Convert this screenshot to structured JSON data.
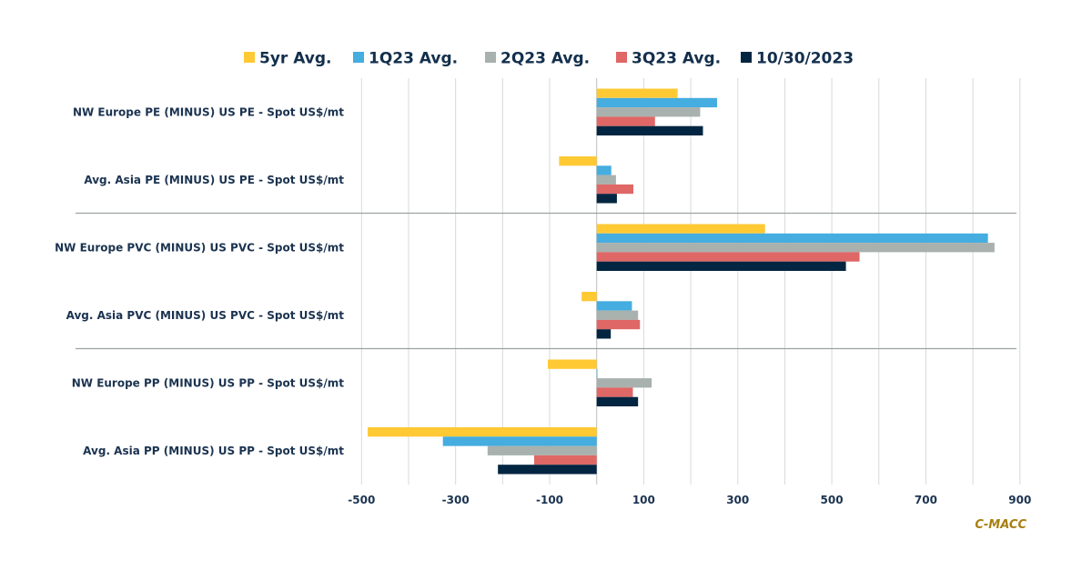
{
  "chart_data": {
    "type": "bar",
    "orientation": "horizontal",
    "title": "",
    "xlabel": "",
    "ylabel": "",
    "xlim": [
      -500,
      900
    ],
    "x_ticks": [
      -500,
      -300,
      -100,
      100,
      300,
      500,
      700,
      900
    ],
    "x_tick_labels": [
      "-500",
      "-300",
      "-100",
      "100",
      "300",
      "500",
      "700",
      "900"
    ],
    "grid": "vertical",
    "legend_position": "top",
    "categories": [
      "NW Europe PE (MINUS) US PE - Spot US$/mt",
      "Avg. Asia PE (MINUS) US PE - Spot US$/mt",
      "NW Europe PVC (MINUS) US PVC - Spot US$/mt",
      "Avg. Asia PVC (MINUS) US PVC - Spot US$/mt",
      "NW Europe PP (MINUS) US PP - Spot US$/mt",
      "Avg. Asia PP (MINUS) US PP - Spot US$/mt"
    ],
    "group_separators_after": [
      1,
      3
    ],
    "series": [
      {
        "name": "5yr Avg.",
        "color": "#FFC934",
        "values": [
          172,
          -80,
          358,
          -32,
          -104,
          -487
        ]
      },
      {
        "name": "1Q23 Avg.",
        "color": "#45ADDF",
        "values": [
          256,
          31,
          832,
          75,
          1,
          -327
        ]
      },
      {
        "name": "2Q23 Avg.",
        "color": "#A8B1AD",
        "values": [
          220,
          41,
          846,
          88,
          117,
          -232
        ]
      },
      {
        "name": "3Q23 Avg.",
        "color": "#DF6766",
        "values": [
          124,
          78,
          559,
          92,
          77,
          -133
        ]
      },
      {
        "name": "10/30/2023",
        "color": "#022641",
        "values": [
          226,
          43,
          530,
          30,
          88,
          -210
        ]
      }
    ],
    "annotations": [
      "C-MACC"
    ]
  },
  "source_label": "C-MACC"
}
